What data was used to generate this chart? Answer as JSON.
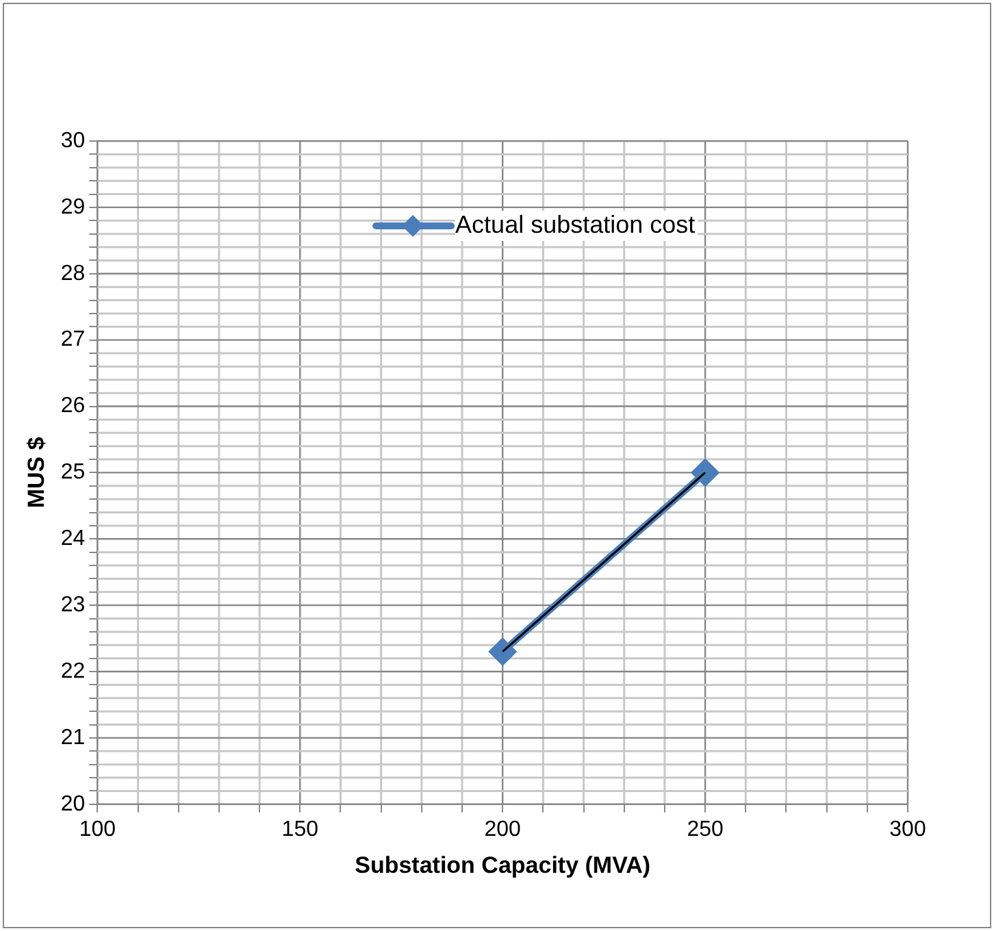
{
  "chart_data": {
    "type": "line",
    "xlabel": "Substation Capacity (MVA)",
    "ylabel": "MUS $",
    "xlim": [
      100,
      300
    ],
    "ylim": [
      20,
      30
    ],
    "xticks": [
      100,
      {
        "value": 110,
        "label": null
      },
      {
        "value": 120,
        "label": null
      },
      {
        "value": 130,
        "label": null
      },
      {
        "value": 140,
        "label": null
      },
      150,
      {
        "value": 160,
        "label": null
      },
      {
        "value": 170,
        "label": null
      },
      {
        "value": 180,
        "label": null
      },
      {
        "value": 190,
        "label": null
      },
      200,
      {
        "value": 210,
        "label": null
      },
      {
        "value": 220,
        "label": null
      },
      {
        "value": 230,
        "label": null
      },
      {
        "value": 240,
        "label": null
      },
      250,
      {
        "value": 260,
        "label": null
      },
      {
        "value": 270,
        "label": null
      },
      {
        "value": 280,
        "label": null
      },
      {
        "value": 290,
        "label": null
      },
      300
    ],
    "yticks": [
      20,
      {
        "value": 20.2,
        "label": null
      },
      {
        "value": 20.4,
        "label": null
      },
      {
        "value": 20.6,
        "label": null
      },
      {
        "value": 20.8,
        "label": null
      },
      21,
      {
        "value": 21.2,
        "label": null
      },
      {
        "value": 21.4,
        "label": null
      },
      {
        "value": 21.6,
        "label": null
      },
      {
        "value": 21.8,
        "label": null
      },
      22,
      {
        "value": 22.2,
        "label": null
      },
      {
        "value": 22.4,
        "label": null
      },
      {
        "value": 22.6,
        "label": null
      },
      {
        "value": 22.8,
        "label": null
      },
      23,
      {
        "value": 23.2,
        "label": null
      },
      {
        "value": 23.4,
        "label": null
      },
      {
        "value": 23.6,
        "label": null
      },
      {
        "value": 23.8,
        "label": null
      },
      24,
      {
        "value": 24.2,
        "label": null
      },
      {
        "value": 24.4,
        "label": null
      },
      {
        "value": 24.6,
        "label": null
      },
      {
        "value": 24.8,
        "label": null
      },
      25,
      {
        "value": 25.2,
        "label": null
      },
      {
        "value": 25.4,
        "label": null
      },
      {
        "value": 25.6,
        "label": null
      },
      {
        "value": 25.8,
        "label": null
      },
      26,
      {
        "value": 26.2,
        "label": null
      },
      {
        "value": 26.4,
        "label": null
      },
      {
        "value": 26.6,
        "label": null
      },
      {
        "value": 26.8,
        "label": null
      },
      27,
      {
        "value": 27.2,
        "label": null
      },
      {
        "value": 27.4,
        "label": null
      },
      {
        "value": 27.6,
        "label": null
      },
      {
        "value": 27.8,
        "label": null
      },
      28,
      {
        "value": 28.2,
        "label": null
      },
      {
        "value": 28.4,
        "label": null
      },
      {
        "value": 28.6,
        "label": null
      },
      {
        "value": 28.8,
        "label": null
      },
      29,
      {
        "value": 29.2,
        "label": null
      },
      {
        "value": 29.4,
        "label": null
      },
      {
        "value": 29.6,
        "label": null
      },
      {
        "value": 29.8,
        "label": null
      },
      30
    ],
    "x": [
      200,
      250
    ],
    "grid": true,
    "legend": "top",
    "marker": "diamond",
    "line_style": "solid",
    "series": [
      {
        "name": "Actual substation cost",
        "color": "#4a7ebb",
        "values": [
          22.3,
          25
        ]
      },
      {
        "color": "#000000",
        "marker": "none",
        "values": [
          22.3,
          25
        ]
      }
    ]
  }
}
